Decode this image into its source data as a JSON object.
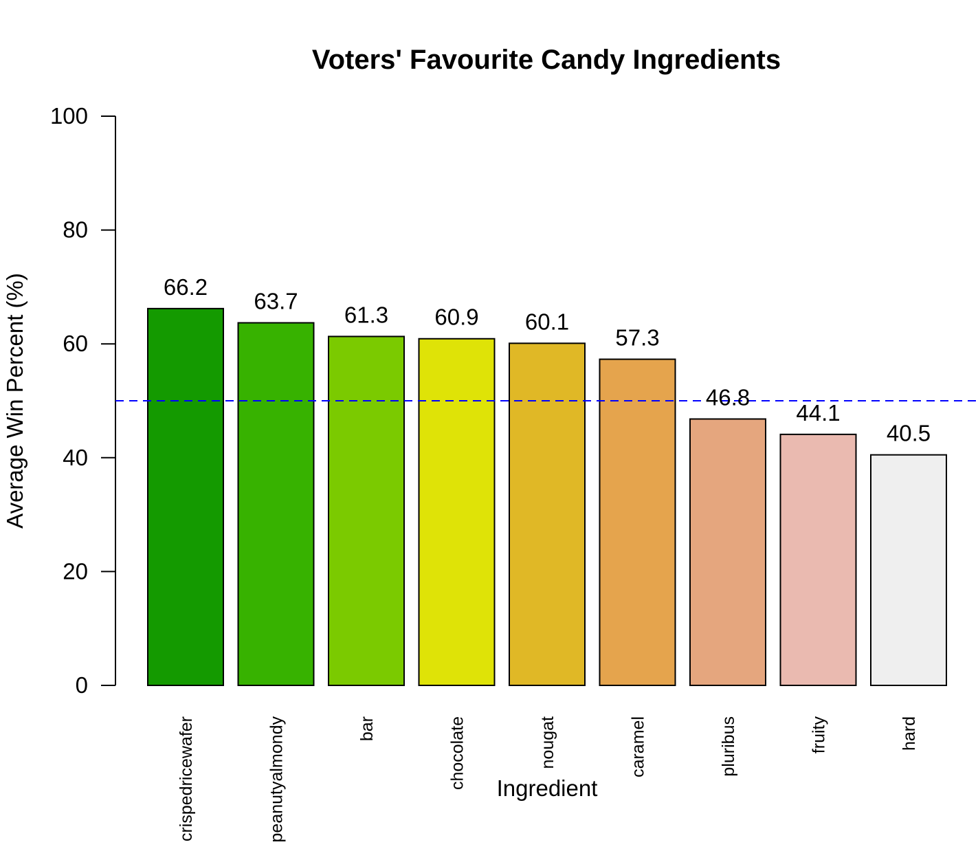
{
  "chart_data": {
    "type": "bar",
    "title": "Voters' Favourite Candy Ingredients",
    "xlabel": "Ingredient",
    "ylabel": "Average Win Percent (%)",
    "ylim": [
      0,
      100
    ],
    "yticks": [
      0,
      20,
      40,
      60,
      80,
      100
    ],
    "categories": [
      "crispedricewafer",
      "peanutyalmondy",
      "bar",
      "chocolate",
      "nougat",
      "caramel",
      "pluribus",
      "fruity",
      "hard"
    ],
    "values": [
      66.2,
      63.7,
      61.3,
      60.9,
      60.1,
      57.3,
      46.8,
      44.1,
      40.5
    ],
    "value_labels": [
      "66.2",
      "63.7",
      "61.3",
      "60.9",
      "60.1",
      "57.3",
      "46.8",
      "44.1",
      "40.5"
    ],
    "bar_colors": [
      "#149A00",
      "#37B200",
      "#7BCA00",
      "#DFE307",
      "#E0B826",
      "#E5A44D",
      "#E5A67E",
      "#EABAB0",
      "#EFEFEF"
    ],
    "reference_line": {
      "value": 50,
      "color": "#0000FF",
      "style": "dashed"
    },
    "grid": false,
    "legend": "none"
  }
}
